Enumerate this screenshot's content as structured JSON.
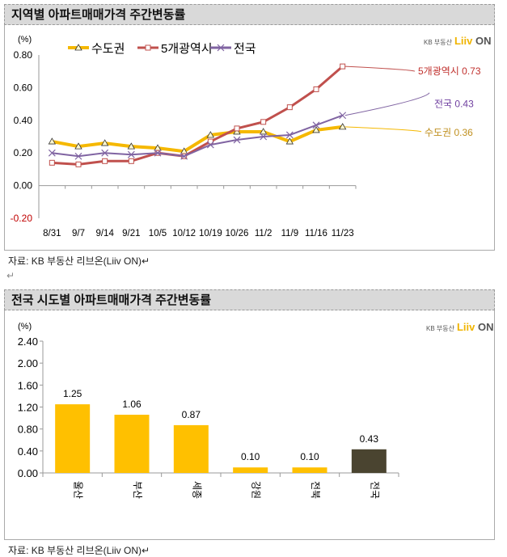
{
  "chart_data": [
    {
      "type": "line",
      "title": "지역별 아파트매매가격 주간변동률",
      "ylabel": "(%)",
      "ylim": [
        -0.2,
        0.8
      ],
      "yticks": [
        "0.80",
        "0.60",
        "0.40",
        "0.20",
        "0.00",
        "-0.20"
      ],
      "categories": [
        "8/31",
        "9/7",
        "9/14",
        "9/21",
        "10/5",
        "10/12",
        "10/19",
        "10/26",
        "11/2",
        "11/9",
        "11/16",
        "11/23"
      ],
      "legend_position": "top-left",
      "series": [
        {
          "name": "수도권",
          "color": "#f5b800",
          "marker": "triangle",
          "values": [
            0.27,
            0.24,
            0.26,
            0.24,
            0.23,
            0.21,
            0.31,
            0.33,
            0.33,
            0.27,
            0.34,
            0.36
          ],
          "end_label": "수도권 0.36",
          "label_color": "#c09020"
        },
        {
          "name": "5개광역시",
          "color": "#c0504d",
          "marker": "square",
          "values": [
            0.14,
            0.13,
            0.15,
            0.15,
            0.2,
            0.18,
            0.27,
            0.35,
            0.39,
            0.48,
            0.59,
            0.73
          ],
          "end_label": "5개광역시 0.73",
          "label_color": "#c0302d"
        },
        {
          "name": "전국",
          "color": "#8064a2",
          "marker": "x",
          "values": [
            0.2,
            0.18,
            0.2,
            0.19,
            0.2,
            0.18,
            0.25,
            0.28,
            0.3,
            0.31,
            0.37,
            0.43
          ],
          "end_label": "전국 0.43",
          "label_color": "#7040a0"
        }
      ]
    },
    {
      "type": "bar",
      "title": "전국 시도별 아파트매매가격 주간변동률",
      "ylabel": "(%)",
      "ylim": [
        0,
        2.4
      ],
      "yticks": [
        "2.40",
        "2.00",
        "1.60",
        "1.20",
        "0.80",
        "0.40",
        "0.00"
      ],
      "categories": [
        "울산",
        "부산",
        "세종",
        "강원",
        "전북",
        "전국"
      ],
      "values": [
        1.25,
        1.06,
        0.87,
        0.1,
        0.1,
        0.43
      ],
      "data_labels": [
        "1.25",
        "1.06",
        "0.87",
        "0.10",
        "0.10",
        "0.43"
      ],
      "colors": [
        "#ffc000",
        "#ffc000",
        "#ffc000",
        "#ffc000",
        "#ffc000",
        "#4a4430"
      ]
    }
  ],
  "logo": {
    "kb": "KB 부동산",
    "liiv": "Liiv",
    "on": "ON"
  },
  "source": "자료: KB 부동산  리브온(Liiv ON)↵",
  "para_mark": "↵"
}
